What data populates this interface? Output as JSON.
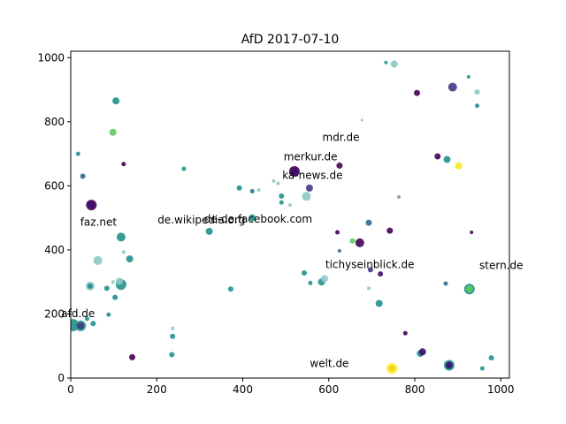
{
  "chart_data": {
    "type": "scatter",
    "title": "AfD    2017-07-10",
    "xlabel": "",
    "ylabel": "",
    "xlim": [
      0,
      1020
    ],
    "ylim": [
      0,
      1020
    ],
    "x_ticks": [
      0,
      200,
      400,
      600,
      800,
      1000
    ],
    "y_ticks": [
      0,
      200,
      400,
      600,
      800,
      1000
    ],
    "grid": false,
    "annotations": [
      {
        "text": "mdr.de",
        "x": 585,
        "y": 740
      },
      {
        "text": "merkur.de",
        "x": 495,
        "y": 680
      },
      {
        "text": "ka-news.de",
        "x": 492,
        "y": 622
      },
      {
        "text": "faz.net",
        "x": 22,
        "y": 475
      },
      {
        "text": "de.wikipedia.org",
        "x": 202,
        "y": 483
      },
      {
        "text": "de-de.facebook.com",
        "x": 310,
        "y": 485
      },
      {
        "text": "tichyseinblick.de",
        "x": 592,
        "y": 343
      },
      {
        "text": "stern.de",
        "x": 950,
        "y": 340
      },
      {
        "text": "afd.de",
        "x": -22,
        "y": 190
      },
      {
        "text": "welt.de",
        "x": 556,
        "y": 35
      }
    ],
    "points": [
      {
        "x": 5,
        "y": 165,
        "size": 7,
        "color": "#21918c"
      },
      {
        "x": 23,
        "y": 163,
        "size": 6,
        "color": "#21918c"
      },
      {
        "x": 23,
        "y": 163,
        "size": 4,
        "color": "#443983"
      },
      {
        "x": 52,
        "y": 170,
        "size": 3,
        "color": "#21918c"
      },
      {
        "x": 38,
        "y": 185,
        "size": 2.5,
        "color": "#21918c"
      },
      {
        "x": 48,
        "y": 540,
        "size": 6,
        "color": "#440154"
      },
      {
        "x": 48,
        "y": 540,
        "size": 4,
        "color": "#3b0f70"
      },
      {
        "x": 28,
        "y": 630,
        "size": 3,
        "color": "#31688e"
      },
      {
        "x": 17,
        "y": 700,
        "size": 2.5,
        "color": "#21918c"
      },
      {
        "x": 105,
        "y": 865,
        "size": 4,
        "color": "#21918c"
      },
      {
        "x": 98,
        "y": 767,
        "size": 4,
        "color": "#5ec962"
      },
      {
        "x": 123,
        "y": 668,
        "size": 2.5,
        "color": "#440154"
      },
      {
        "x": 117,
        "y": 440,
        "size": 5,
        "color": "#21918c"
      },
      {
        "x": 63,
        "y": 367,
        "size": 5,
        "color": "#8cc8c4"
      },
      {
        "x": 137,
        "y": 372,
        "size": 4,
        "color": "#21918c"
      },
      {
        "x": 123,
        "y": 393,
        "size": 2,
        "color": "#8cc8c4"
      },
      {
        "x": 45,
        "y": 287,
        "size": 5,
        "color": "#8cc8c4"
      },
      {
        "x": 45,
        "y": 287,
        "size": 3,
        "color": "#21918c"
      },
      {
        "x": 84,
        "y": 280,
        "size": 3,
        "color": "#21918c"
      },
      {
        "x": 117,
        "y": 292,
        "size": 6,
        "color": "#21918c"
      },
      {
        "x": 113,
        "y": 302,
        "size": 4,
        "color": "#8cc8c4"
      },
      {
        "x": 98,
        "y": 300,
        "size": 2,
        "color": "#8cc8c4"
      },
      {
        "x": 103,
        "y": 252,
        "size": 3,
        "color": "#21918c"
      },
      {
        "x": 88,
        "y": 198,
        "size": 2.5,
        "color": "#21918c"
      },
      {
        "x": 143,
        "y": 65,
        "size": 3.5,
        "color": "#440154"
      },
      {
        "x": 263,
        "y": 653,
        "size": 2.5,
        "color": "#21918c"
      },
      {
        "x": 237,
        "y": 155,
        "size": 2,
        "color": "#8cc8c4"
      },
      {
        "x": 237,
        "y": 130,
        "size": 3,
        "color": "#21918c"
      },
      {
        "x": 235,
        "y": 73,
        "size": 3,
        "color": "#21918c"
      },
      {
        "x": 322,
        "y": 458,
        "size": 4,
        "color": "#21918c"
      },
      {
        "x": 372,
        "y": 278,
        "size": 3,
        "color": "#21918c"
      },
      {
        "x": 392,
        "y": 593,
        "size": 3,
        "color": "#21918c"
      },
      {
        "x": 422,
        "y": 583,
        "size": 2.5,
        "color": "#2a788e"
      },
      {
        "x": 422,
        "y": 500,
        "size": 4,
        "color": "#21918c"
      },
      {
        "x": 437,
        "y": 587,
        "size": 2,
        "color": "#8cc8c4"
      },
      {
        "x": 472,
        "y": 615,
        "size": 2,
        "color": "#8cc8c4"
      },
      {
        "x": 482,
        "y": 608,
        "size": 2,
        "color": "#8cc8c4"
      },
      {
        "x": 490,
        "y": 568,
        "size": 3,
        "color": "#21918c"
      },
      {
        "x": 490,
        "y": 548,
        "size": 2.5,
        "color": "#21918c"
      },
      {
        "x": 510,
        "y": 540,
        "size": 2,
        "color": "#8cc8c4"
      },
      {
        "x": 548,
        "y": 567,
        "size": 5,
        "color": "#8cc8c4"
      },
      {
        "x": 555,
        "y": 593,
        "size": 4,
        "color": "#443983"
      },
      {
        "x": 520,
        "y": 645,
        "size": 6,
        "color": "#440154"
      },
      {
        "x": 520,
        "y": 645,
        "size": 4,
        "color": "#3b0f70"
      },
      {
        "x": 625,
        "y": 663,
        "size": 3.5,
        "color": "#440154"
      },
      {
        "x": 620,
        "y": 455,
        "size": 2.5,
        "color": "#440154"
      },
      {
        "x": 625,
        "y": 397,
        "size": 2,
        "color": "#31688e"
      },
      {
        "x": 655,
        "y": 428,
        "size": 3,
        "color": "#5ec962"
      },
      {
        "x": 672,
        "y": 422,
        "size": 5,
        "color": "#440154"
      },
      {
        "x": 693,
        "y": 485,
        "size": 3.5,
        "color": "#31688e"
      },
      {
        "x": 742,
        "y": 460,
        "size": 3.5,
        "color": "#440154"
      },
      {
        "x": 677,
        "y": 805,
        "size": 1.5,
        "color": "#8cc8c4"
      },
      {
        "x": 733,
        "y": 985,
        "size": 2,
        "color": "#21918c"
      },
      {
        "x": 752,
        "y": 980,
        "size": 4,
        "color": "#8cc8c4"
      },
      {
        "x": 805,
        "y": 890,
        "size": 3.5,
        "color": "#440154"
      },
      {
        "x": 763,
        "y": 565,
        "size": 2,
        "color": "#b07fb8"
      },
      {
        "x": 853,
        "y": 692,
        "size": 3.5,
        "color": "#440154"
      },
      {
        "x": 875,
        "y": 682,
        "size": 4,
        "color": "#21918c"
      },
      {
        "x": 902,
        "y": 662,
        "size": 4,
        "color": "#fde725"
      },
      {
        "x": 888,
        "y": 908,
        "size": 5,
        "color": "#443983"
      },
      {
        "x": 925,
        "y": 940,
        "size": 2,
        "color": "#21918c"
      },
      {
        "x": 945,
        "y": 893,
        "size": 3,
        "color": "#8cc8c4"
      },
      {
        "x": 945,
        "y": 850,
        "size": 2.5,
        "color": "#21918c"
      },
      {
        "x": 932,
        "y": 455,
        "size": 2,
        "color": "#440154"
      },
      {
        "x": 927,
        "y": 278,
        "size": 6,
        "color": "#21918c"
      },
      {
        "x": 927,
        "y": 278,
        "size": 4,
        "color": "#5ec962"
      },
      {
        "x": 872,
        "y": 295,
        "size": 2.5,
        "color": "#31688e"
      },
      {
        "x": 543,
        "y": 328,
        "size": 3,
        "color": "#21918c"
      },
      {
        "x": 557,
        "y": 297,
        "size": 2.5,
        "color": "#21918c"
      },
      {
        "x": 583,
        "y": 300,
        "size": 4,
        "color": "#21918c"
      },
      {
        "x": 590,
        "y": 310,
        "size": 4,
        "color": "#8cc8c4"
      },
      {
        "x": 693,
        "y": 280,
        "size": 2,
        "color": "#8cc8c4"
      },
      {
        "x": 697,
        "y": 338,
        "size": 3,
        "color": "#443983"
      },
      {
        "x": 720,
        "y": 325,
        "size": 3,
        "color": "#3b0f70"
      },
      {
        "x": 717,
        "y": 233,
        "size": 4,
        "color": "#21918c"
      },
      {
        "x": 778,
        "y": 140,
        "size": 2.5,
        "color": "#440154"
      },
      {
        "x": 813,
        "y": 77,
        "size": 4,
        "color": "#21918c"
      },
      {
        "x": 818,
        "y": 82,
        "size": 4,
        "color": "#3b0f70"
      },
      {
        "x": 880,
        "y": 40,
        "size": 6,
        "color": "#21918c"
      },
      {
        "x": 880,
        "y": 40,
        "size": 4,
        "color": "#3b0f70"
      },
      {
        "x": 957,
        "y": 30,
        "size": 2.5,
        "color": "#21918c"
      },
      {
        "x": 978,
        "y": 63,
        "size": 3,
        "color": "#21918c"
      },
      {
        "x": 747,
        "y": 30,
        "size": 6,
        "color": "#fde725"
      },
      {
        "x": 747,
        "y": 30,
        "size": 3,
        "color": "#e3d31f"
      }
    ]
  }
}
